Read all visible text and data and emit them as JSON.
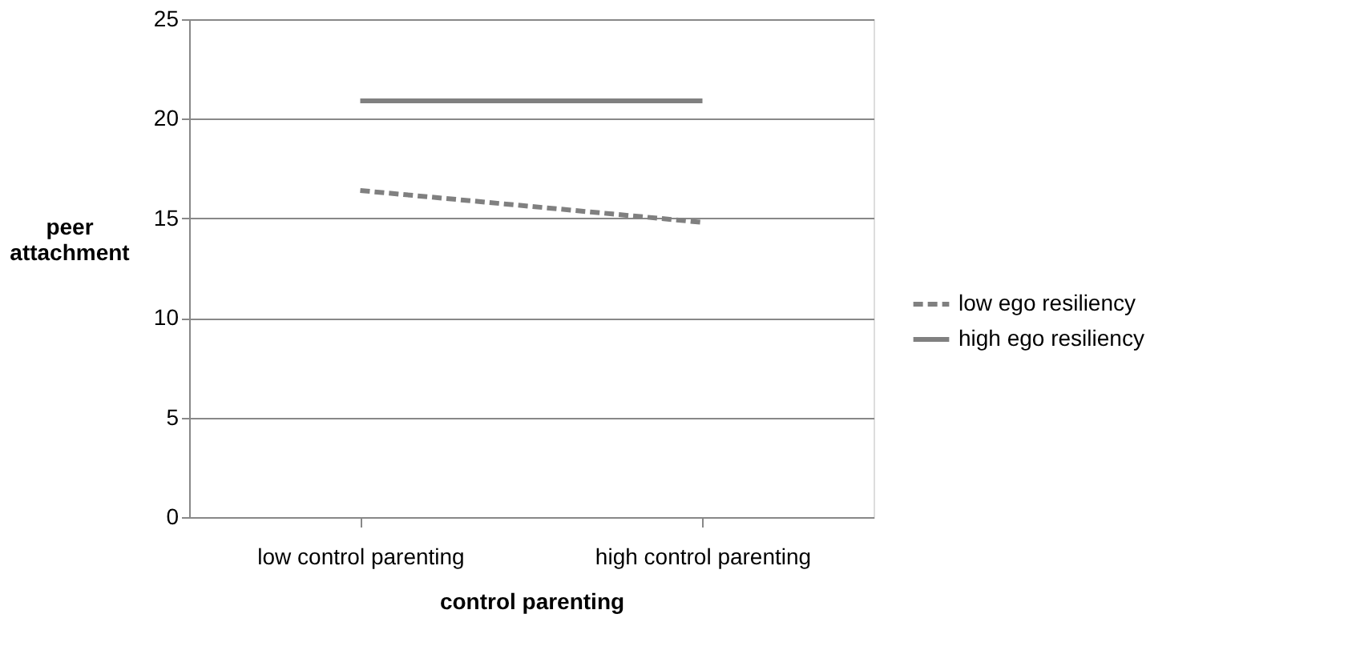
{
  "chart_data": {
    "type": "line",
    "xlabel": "control parenting",
    "ylabel": "peer attachment",
    "categories": [
      "low control parenting",
      "high control parenting"
    ],
    "series": [
      {
        "name": "low ego resiliency",
        "color": "#808080",
        "line_style": "dashed",
        "values": [
          16.4,
          14.8
        ]
      },
      {
        "name": "high ego resiliency",
        "color": "#808080",
        "line_style": "solid",
        "values": [
          20.9,
          20.9
        ]
      }
    ],
    "ylim": [
      0,
      25
    ],
    "yticks": [
      0,
      5,
      10,
      15,
      20,
      25
    ],
    "grid": "y",
    "legend": "right",
    "marker": "none"
  }
}
